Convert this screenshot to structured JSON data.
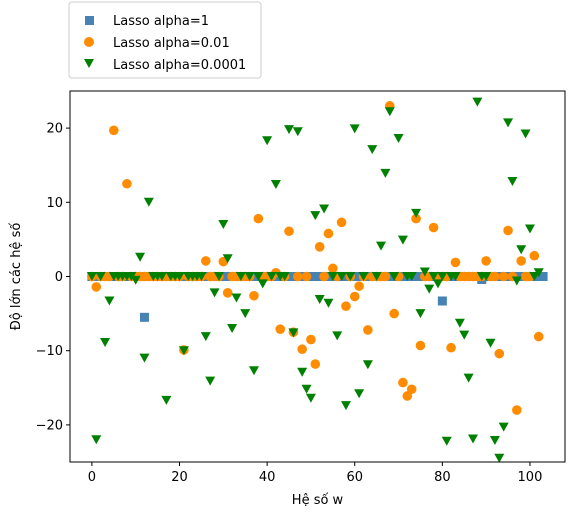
{
  "chart_data": {
    "type": "scatter",
    "xlabel": "Hệ số w",
    "ylabel": "Độ lớn các hệ số",
    "xlim": [
      -5,
      108
    ],
    "ylim": [
      -25,
      25
    ],
    "xticks": [
      0,
      20,
      40,
      60,
      80,
      100
    ],
    "yticks": [
      -20,
      -10,
      0,
      10,
      20
    ],
    "xtick_labels": [
      "0",
      "20",
      "40",
      "60",
      "80",
      "100"
    ],
    "ytick_labels": [
      "−20",
      "−10",
      "0",
      "10",
      "20"
    ],
    "grid": false,
    "legend_placement": "above-top-left",
    "series": [
      {
        "name": "Lasso alpha=1",
        "marker": "square",
        "color": "#4682b4",
        "points": [
          [
            0,
            0
          ],
          [
            1,
            0
          ],
          [
            2,
            0
          ],
          [
            3,
            0
          ],
          [
            4,
            0
          ],
          [
            5,
            0
          ],
          [
            6,
            0
          ],
          [
            7,
            0
          ],
          [
            8,
            0
          ],
          [
            9,
            0
          ],
          [
            10,
            0
          ],
          [
            11,
            0
          ],
          [
            12,
            -5.5
          ],
          [
            13,
            0
          ],
          [
            14,
            0
          ],
          [
            15,
            0
          ],
          [
            16,
            0
          ],
          [
            17,
            0
          ],
          [
            18,
            0
          ],
          [
            19,
            0
          ],
          [
            20,
            0
          ],
          [
            21,
            0
          ],
          [
            22,
            0
          ],
          [
            23,
            0
          ],
          [
            24,
            0
          ],
          [
            25,
            0
          ],
          [
            26,
            0
          ],
          [
            27,
            0
          ],
          [
            28,
            0
          ],
          [
            29,
            0
          ],
          [
            30,
            0
          ],
          [
            31,
            0
          ],
          [
            32,
            0
          ],
          [
            33,
            0
          ],
          [
            34,
            0
          ],
          [
            35,
            0
          ],
          [
            36,
            0
          ],
          [
            37,
            0
          ],
          [
            38,
            0
          ],
          [
            39,
            0
          ],
          [
            40,
            0
          ],
          [
            41,
            0
          ],
          [
            42,
            0
          ],
          [
            43,
            0
          ],
          [
            44,
            0
          ],
          [
            45,
            0
          ],
          [
            46,
            0
          ],
          [
            47,
            0
          ],
          [
            48,
            0
          ],
          [
            49,
            0
          ],
          [
            50,
            0
          ],
          [
            51,
            0
          ],
          [
            52,
            0
          ],
          [
            53,
            0
          ],
          [
            54,
            0
          ],
          [
            55,
            0
          ],
          [
            56,
            0
          ],
          [
            57,
            0
          ],
          [
            58,
            0
          ],
          [
            59,
            0
          ],
          [
            60,
            0
          ],
          [
            61,
            0
          ],
          [
            62,
            0
          ],
          [
            63,
            0
          ],
          [
            64,
            0
          ],
          [
            65,
            0
          ],
          [
            66,
            0
          ],
          [
            67,
            0
          ],
          [
            68,
            0
          ],
          [
            69,
            0
          ],
          [
            70,
            0
          ],
          [
            71,
            0
          ],
          [
            72,
            0
          ],
          [
            73,
            0
          ],
          [
            74,
            0
          ],
          [
            75,
            0
          ],
          [
            76,
            0
          ],
          [
            77,
            0
          ],
          [
            78,
            0
          ],
          [
            79,
            0
          ],
          [
            80,
            -3.3
          ],
          [
            81,
            0
          ],
          [
            82,
            0
          ],
          [
            83,
            0
          ],
          [
            84,
            0
          ],
          [
            85,
            0
          ],
          [
            86,
            0
          ],
          [
            87,
            0
          ],
          [
            88,
            0
          ],
          [
            89,
            -0.4
          ],
          [
            90,
            0
          ],
          [
            91,
            0
          ],
          [
            92,
            0
          ],
          [
            93,
            0
          ],
          [
            94,
            0
          ],
          [
            95,
            0
          ],
          [
            96,
            0
          ],
          [
            97,
            0
          ],
          [
            98,
            0
          ],
          [
            99,
            0
          ],
          [
            100,
            0
          ],
          [
            101,
            0
          ],
          [
            102,
            0
          ],
          [
            103,
            0
          ]
        ]
      },
      {
        "name": "Lasso alpha=0.01",
        "marker": "circle",
        "color": "#ff8c00",
        "points": [
          [
            0,
            0
          ],
          [
            1,
            -1.4
          ],
          [
            2,
            0
          ],
          [
            3,
            0
          ],
          [
            4,
            0
          ],
          [
            5,
            19.7
          ],
          [
            6,
            0
          ],
          [
            7,
            0
          ],
          [
            8,
            12.5
          ],
          [
            9,
            0
          ],
          [
            10,
            0
          ],
          [
            11,
            0
          ],
          [
            12,
            0
          ],
          [
            13,
            0
          ],
          [
            14,
            0
          ],
          [
            15,
            0
          ],
          [
            16,
            0
          ],
          [
            17,
            0
          ],
          [
            18,
            0
          ],
          [
            19,
            0
          ],
          [
            20,
            0
          ],
          [
            21,
            -9.9
          ],
          [
            22,
            0
          ],
          [
            23,
            0
          ],
          [
            24,
            0
          ],
          [
            25,
            0
          ],
          [
            26,
            2.1
          ],
          [
            27,
            0
          ],
          [
            28,
            0
          ],
          [
            29,
            0
          ],
          [
            30,
            2.0
          ],
          [
            31,
            -2.2
          ],
          [
            32,
            0
          ],
          [
            33,
            0
          ],
          [
            34,
            0
          ],
          [
            35,
            0
          ],
          [
            36,
            0
          ],
          [
            37,
            -2.6
          ],
          [
            38,
            7.8
          ],
          [
            39,
            0
          ],
          [
            40,
            0
          ],
          [
            41,
            0
          ],
          [
            42,
            0.5
          ],
          [
            43,
            -7.1
          ],
          [
            44,
            0
          ],
          [
            45,
            6.1
          ],
          [
            46,
            -7.5
          ],
          [
            47,
            0
          ],
          [
            48,
            -9.8
          ],
          [
            49,
            0
          ],
          [
            50,
            -8.5
          ],
          [
            51,
            -11.8
          ],
          [
            52,
            4.0
          ],
          [
            53,
            0
          ],
          [
            54,
            5.8
          ],
          [
            55,
            1.1
          ],
          [
            56,
            0
          ],
          [
            57,
            7.3
          ],
          [
            58,
            -4.0
          ],
          [
            59,
            0
          ],
          [
            60,
            -2.7
          ],
          [
            61,
            -1.3
          ],
          [
            62,
            0
          ],
          [
            63,
            -7.2
          ],
          [
            64,
            0
          ],
          [
            65,
            0
          ],
          [
            66,
            0
          ],
          [
            67,
            0
          ],
          [
            68,
            23.0
          ],
          [
            69,
            -5.0
          ],
          [
            70,
            0
          ],
          [
            71,
            -14.3
          ],
          [
            72,
            -16.1
          ],
          [
            73,
            -15.2
          ],
          [
            74,
            7.8
          ],
          [
            75,
            -9.3
          ],
          [
            76,
            0
          ],
          [
            77,
            0
          ],
          [
            78,
            6.6
          ],
          [
            79,
            0
          ],
          [
            80,
            0
          ],
          [
            81,
            0
          ],
          [
            82,
            -9.6
          ],
          [
            83,
            1.9
          ],
          [
            84,
            0
          ],
          [
            85,
            0
          ],
          [
            86,
            0
          ],
          [
            87,
            0
          ],
          [
            88,
            0
          ],
          [
            89,
            0
          ],
          [
            90,
            2.1
          ],
          [
            91,
            0
          ],
          [
            92,
            0
          ],
          [
            93,
            -10.4
          ],
          [
            94,
            0
          ],
          [
            95,
            6.2
          ],
          [
            96,
            0
          ],
          [
            97,
            -18.0
          ],
          [
            98,
            2.1
          ],
          [
            99,
            0
          ],
          [
            100,
            0
          ],
          [
            101,
            2.8
          ],
          [
            102,
            -8.1
          ]
        ]
      },
      {
        "name": "Lasso alpha=0.0001",
        "marker": "triangle-down",
        "color": "#008000",
        "points": [
          [
            0,
            0
          ],
          [
            1,
            -22.0
          ],
          [
            2,
            0
          ],
          [
            3,
            -8.9
          ],
          [
            4,
            -3.3
          ],
          [
            5,
            0
          ],
          [
            6,
            0
          ],
          [
            7,
            0
          ],
          [
            8,
            0
          ],
          [
            9,
            0
          ],
          [
            10,
            -0.5
          ],
          [
            11,
            2.6
          ],
          [
            12,
            -11.0
          ],
          [
            13,
            10.0
          ],
          [
            14,
            0
          ],
          [
            15,
            0
          ],
          [
            16,
            0
          ],
          [
            17,
            -16.7
          ],
          [
            18,
            0
          ],
          [
            19,
            0
          ],
          [
            20,
            0
          ],
          [
            21,
            -10.0
          ],
          [
            22,
            0
          ],
          [
            23,
            0
          ],
          [
            24,
            0
          ],
          [
            25,
            0
          ],
          [
            26,
            -8.1
          ],
          [
            27,
            -14.1
          ],
          [
            28,
            -2.2
          ],
          [
            29,
            0
          ],
          [
            30,
            7.0
          ],
          [
            31,
            2.4
          ],
          [
            32,
            -7.0
          ],
          [
            33,
            -2.9
          ],
          [
            34,
            0
          ],
          [
            35,
            -5.0
          ],
          [
            36,
            0
          ],
          [
            37,
            -12.7
          ],
          [
            38,
            0
          ],
          [
            39,
            -1.0
          ],
          [
            40,
            18.3
          ],
          [
            41,
            0
          ],
          [
            42,
            12.4
          ],
          [
            43,
            0
          ],
          [
            44,
            0
          ],
          [
            45,
            19.8
          ],
          [
            46,
            -7.6
          ],
          [
            47,
            19.5
          ],
          [
            48,
            -12.9
          ],
          [
            49,
            -15.2
          ],
          [
            50,
            -16.4
          ],
          [
            51,
            8.2
          ],
          [
            52,
            -3.1
          ],
          [
            53,
            9.1
          ],
          [
            54,
            -3.6
          ],
          [
            55,
            0
          ],
          [
            56,
            -8.0
          ],
          [
            57,
            0
          ],
          [
            58,
            -17.4
          ],
          [
            59,
            0
          ],
          [
            60,
            19.9
          ],
          [
            61,
            -15.8
          ],
          [
            62,
            0
          ],
          [
            63,
            -11.9
          ],
          [
            64,
            17.1
          ],
          [
            65,
            0
          ],
          [
            66,
            4.1
          ],
          [
            67,
            13.9
          ],
          [
            68,
            22.2
          ],
          [
            69,
            0
          ],
          [
            70,
            18.6
          ],
          [
            71,
            4.9
          ],
          [
            72,
            0
          ],
          [
            73,
            0
          ],
          [
            74,
            8.5
          ],
          [
            75,
            -5.0
          ],
          [
            76,
            0.6
          ],
          [
            77,
            -1.7
          ],
          [
            78,
            0
          ],
          [
            79,
            -1.0
          ],
          [
            80,
            0
          ],
          [
            81,
            -22.2
          ],
          [
            82,
            0
          ],
          [
            83,
            0
          ],
          [
            84,
            -6.3
          ],
          [
            85,
            -7.9
          ],
          [
            86,
            -13.7
          ],
          [
            87,
            -21.9
          ],
          [
            88,
            23.5
          ],
          [
            89,
            0
          ],
          [
            90,
            0
          ],
          [
            91,
            -9.0
          ],
          [
            92,
            -22.1
          ],
          [
            93,
            -24.5
          ],
          [
            94,
            -20.3
          ],
          [
            95,
            20.7
          ],
          [
            96,
            12.8
          ],
          [
            97,
            -0.6
          ],
          [
            98,
            3.6
          ],
          [
            99,
            19.2
          ],
          [
            100,
            6.4
          ],
          [
            101,
            0
          ],
          [
            102,
            0.5
          ]
        ]
      }
    ]
  }
}
